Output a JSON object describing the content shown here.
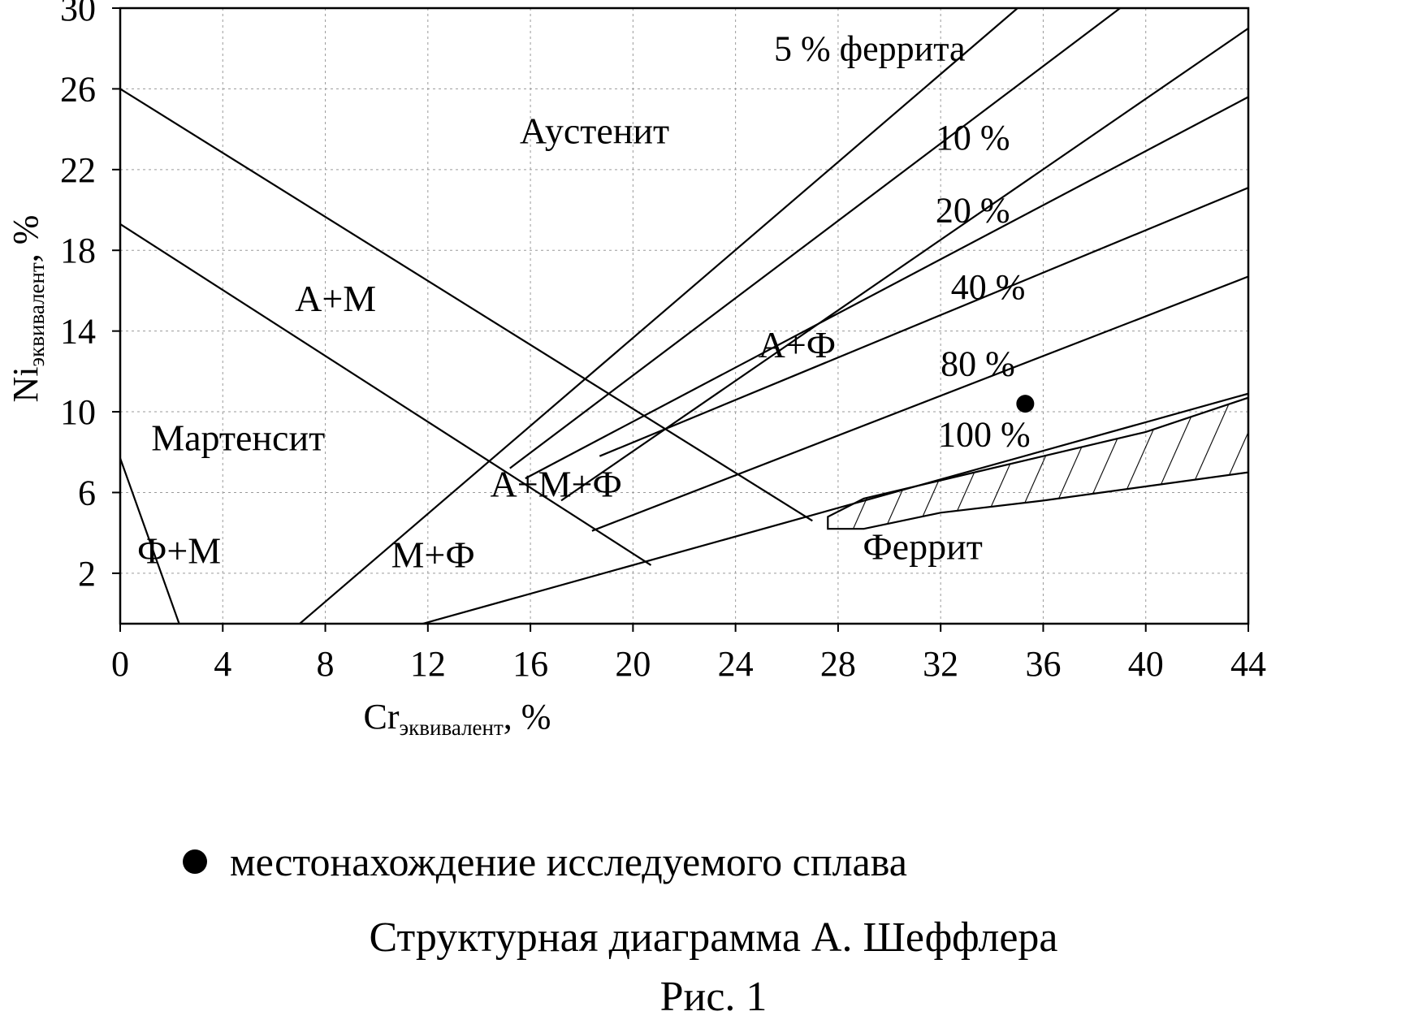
{
  "chart_data": {
    "type": "line",
    "title": "Структурная диаграмма А. Шеффлера",
    "figure_label": "Рис. 1",
    "xlabel": {
      "main": "Cr",
      "sub": "эквивалент",
      "suffix": ", %"
    },
    "ylabel": {
      "main": "Ni",
      "sub": "эквивалент",
      "suffix": ", %"
    },
    "xlim": [
      0,
      44
    ],
    "ylim": [
      -0.5,
      30
    ],
    "x_ticks": [
      0,
      4,
      8,
      12,
      16,
      20,
      24,
      28,
      32,
      36,
      40,
      44
    ],
    "y_ticks": [
      2,
      6,
      10,
      14,
      18,
      22,
      26,
      30
    ],
    "grid": true,
    "series": [
      {
        "x": [
          0,
          27.0
        ],
        "y": [
          26.0,
          4.6
        ]
      },
      {
        "x": [
          0,
          20.7
        ],
        "y": [
          19.3,
          2.4
        ]
      },
      {
        "x": [
          0,
          2.3
        ],
        "y": [
          7.7,
          -0.5
        ]
      },
      {
        "x": [
          7.0,
          35.0
        ],
        "y": [
          -0.5,
          30.0
        ]
      },
      {
        "x": [
          11.8,
          44.0
        ],
        "y": [
          -0.5,
          10.9
        ]
      },
      {
        "x": [
          15.2,
          39.0
        ],
        "y": [
          7.2,
          30.0
        ]
      },
      {
        "x": [
          15.8,
          44.0
        ],
        "y": [
          6.7,
          25.6
        ]
      },
      {
        "x": [
          18.7,
          44.0
        ],
        "y": [
          7.8,
          21.1
        ]
      },
      {
        "x": [
          18.4,
          44.0
        ],
        "y": [
          4.1,
          16.7
        ]
      },
      {
        "x": [
          17.2,
          44.0
        ],
        "y": [
          5.6,
          29.0
        ]
      }
    ],
    "points": [
      {
        "x": 35.3,
        "y": 10.4,
        "label": "местонахождение исследуемого сплава"
      }
    ],
    "regions": [
      {
        "label": "Аустенит",
        "x": 18.5,
        "y": 23.3
      },
      {
        "label": "А+М",
        "x": 8.4,
        "y": 15.0
      },
      {
        "label": "Мартенсит",
        "x": 4.6,
        "y": 8.1
      },
      {
        "label": "Ф+М",
        "x": 2.3,
        "y": 2.5
      },
      {
        "label": "М+Ф",
        "x": 12.2,
        "y": 2.3
      },
      {
        "label": "А+М+Ф",
        "x": 17.0,
        "y": 5.8
      },
      {
        "label": "А+Ф",
        "x": 26.4,
        "y": 12.7
      },
      {
        "label": "Феррит",
        "x": 31.3,
        "y": 2.7
      }
    ],
    "ferrite_labels": [
      {
        "label": "5 % феррита",
        "x": 25.5,
        "y": 27.4
      },
      {
        "label": "10 %",
        "x": 31.8,
        "y": 23.0
      },
      {
        "label": "20 %",
        "x": 31.8,
        "y": 19.4
      },
      {
        "label": "40 %",
        "x": 32.4,
        "y": 15.6
      },
      {
        "label": "80 %",
        "x": 32.0,
        "y": 11.8
      },
      {
        "label": "100 %",
        "x": 31.9,
        "y": 8.3
      }
    ]
  },
  "legend": {
    "text": "местонахождение исследуемого сплава"
  },
  "caption": {
    "title": "Структурная диаграмма А. Шеффлера",
    "figure": "Рис. 1"
  }
}
